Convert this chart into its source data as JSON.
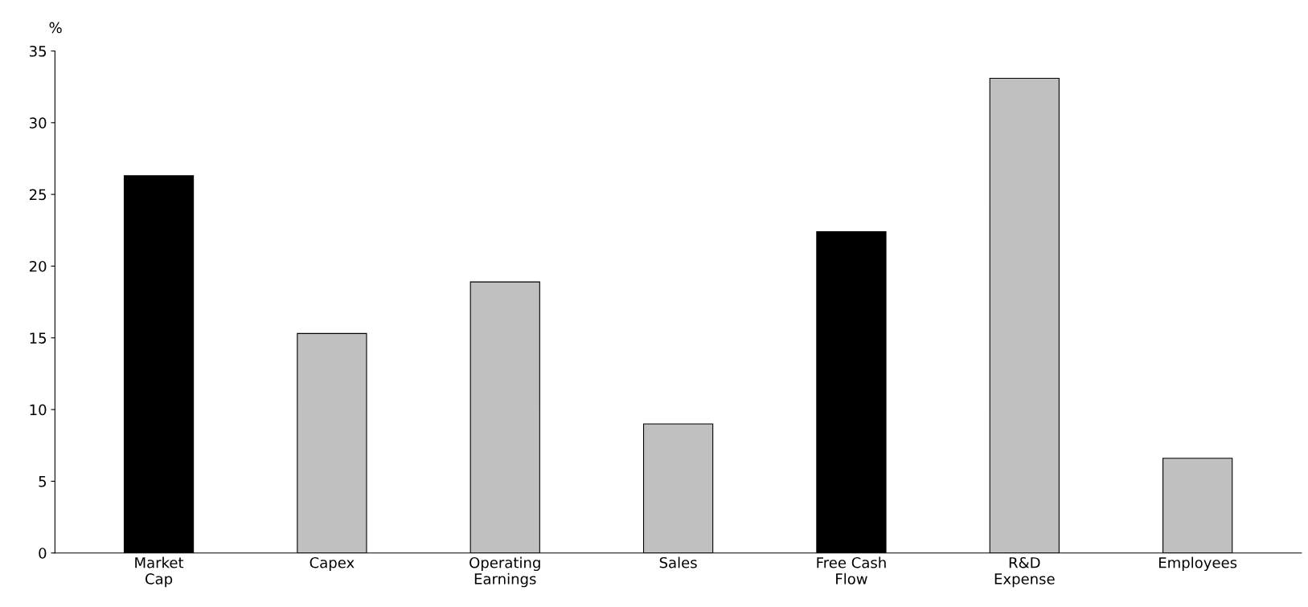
{
  "chart_data": {
    "type": "bar",
    "ylabel": "%",
    "categories": [
      "Market\nCap",
      "Capex",
      "Operating\nEarnings",
      "Sales",
      "Free Cash\nFlow",
      "R&D\nExpense",
      "Employees"
    ],
    "values": [
      26.3,
      15.3,
      18.9,
      9.0,
      22.4,
      33.1,
      6.6
    ],
    "colors": [
      "#000000",
      "#c0c0c0",
      "#c0c0c0",
      "#c0c0c0",
      "#000000",
      "#c0c0c0",
      "#c0c0c0"
    ],
    "ylim": [
      0,
      35
    ],
    "yticks": [
      0,
      5,
      10,
      15,
      20,
      25,
      30,
      35
    ],
    "grid": false,
    "legend": false
  }
}
